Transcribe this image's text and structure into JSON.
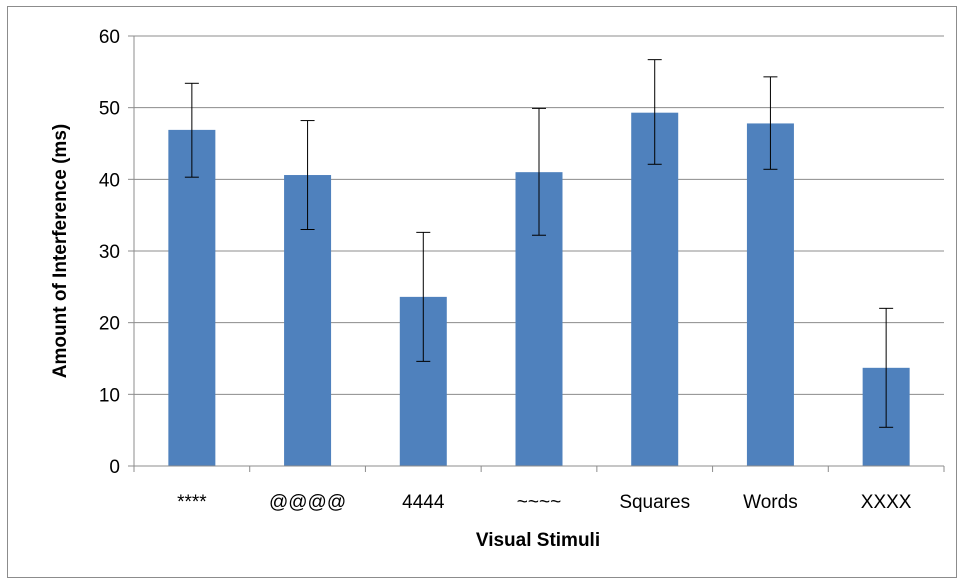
{
  "chart_data": {
    "type": "bar",
    "title": "",
    "xlabel": "Visual Stimuli",
    "ylabel": "Amount of Interference (ms)",
    "ylim": [
      0,
      60
    ],
    "yticks": [
      0,
      10,
      20,
      30,
      40,
      50,
      60
    ],
    "grid": "horizontal",
    "legend": "none",
    "categories": [
      "****",
      "@@@@",
      "4444",
      "~~~~",
      "Squares",
      "Words",
      "XXXX"
    ],
    "values": [
      46.9,
      40.6,
      23.6,
      41.0,
      49.3,
      47.8,
      13.7
    ],
    "error_low": [
      40.3,
      33.0,
      14.6,
      32.2,
      42.1,
      41.4,
      5.4
    ],
    "error_high": [
      53.4,
      48.2,
      32.6,
      49.9,
      56.7,
      54.3,
      22.0
    ],
    "bar_color": "#4f81bd",
    "grid_color": "#8c8c8c"
  }
}
